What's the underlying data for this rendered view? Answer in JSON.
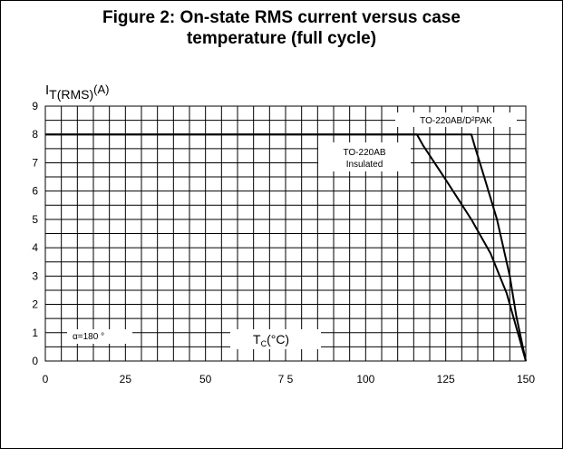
{
  "figure": {
    "title_line1": "Figure 2: On-state RMS current versus case",
    "title_line2": "temperature (full cycle)"
  },
  "chart_data": {
    "type": "line",
    "title": "Figure 2: On-state RMS current versus case temperature (full cycle)",
    "ylabel_main": "I",
    "ylabel_sub": "T(RMS)",
    "ylabel_unit": "(A)",
    "xlabel_main": "T",
    "xlabel_sub": "C",
    "xlabel_unit": "(°C)",
    "xlim": [
      0,
      150
    ],
    "ylim": [
      0,
      9
    ],
    "xticks": [
      0,
      25,
      50,
      75,
      100,
      125,
      150
    ],
    "xtick_labels": [
      "0",
      "25",
      "50",
      "7 5",
      "100",
      "125",
      "150"
    ],
    "yticks": [
      0,
      1,
      2,
      3,
      4,
      5,
      6,
      7,
      8,
      9
    ],
    "grid": true,
    "annotations": {
      "conduction_angle": "α=180 °"
    },
    "series": [
      {
        "name": "TO-220AB/D²PAK",
        "name_line1": "TO-220AB/D²PAK",
        "x": [
          0,
          133,
          134,
          137,
          141,
          145,
          147,
          150
        ],
        "y": [
          8,
          8,
          7.6,
          6.5,
          5,
          3,
          1.6,
          0
        ]
      },
      {
        "name": "TO-220AB Insulated",
        "name_line1": "TO-220AB",
        "name_line2": "Insulated",
        "x": [
          0,
          116,
          118,
          125,
          133,
          139,
          144,
          150
        ],
        "y": [
          8,
          8,
          7.6,
          6.4,
          5,
          3.8,
          2.4,
          0
        ]
      }
    ]
  }
}
